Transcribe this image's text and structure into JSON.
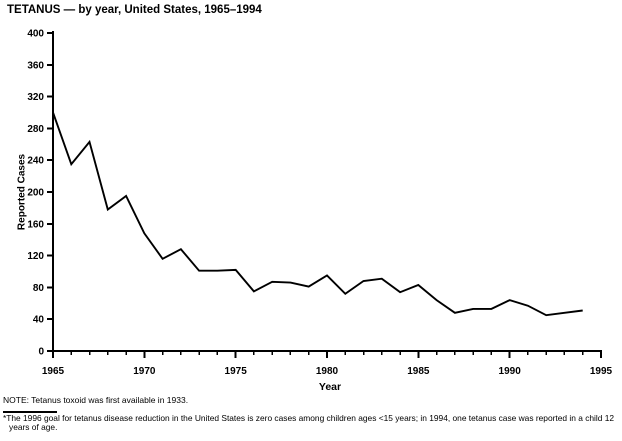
{
  "title": "TETANUS — by year, United States, 1965–1994",
  "note": "NOTE: Tetanus toxoid was first available in 1933.",
  "footnote": "*The 1996 goal for tetanus disease reduction in the United States is zero cases among children ages <15 years; in 1994, one tetanus case was reported in a child 12 years of age.",
  "colors": {
    "line": "#000000",
    "axis": "#000000",
    "background": "#ffffff"
  },
  "chart_data": {
    "type": "line",
    "title": "TETANUS — by year, United States, 1965–1994",
    "xlabel": "Year",
    "ylabel": "Reported Cases",
    "x": [
      1965,
      1966,
      1967,
      1968,
      1969,
      1970,
      1971,
      1972,
      1973,
      1974,
      1975,
      1976,
      1977,
      1978,
      1979,
      1980,
      1981,
      1982,
      1983,
      1984,
      1985,
      1986,
      1987,
      1988,
      1989,
      1990,
      1991,
      1992,
      1993,
      1994
    ],
    "y": [
      300,
      235,
      263,
      178,
      195,
      148,
      116,
      128,
      101,
      101,
      102,
      75,
      87,
      86,
      81,
      95,
      72,
      88,
      91,
      74,
      83,
      64,
      48,
      53,
      53,
      64,
      57,
      45,
      48,
      51
    ],
    "xlim": [
      1965,
      1995
    ],
    "ylim": [
      0,
      400
    ],
    "x_major_ticks": [
      1965,
      1970,
      1975,
      1980,
      1985,
      1990,
      1995
    ],
    "x_minor_tick_step": 1,
    "y_tick_step": 40,
    "grid": false,
    "legend": "none",
    "line_color": "#000000"
  }
}
